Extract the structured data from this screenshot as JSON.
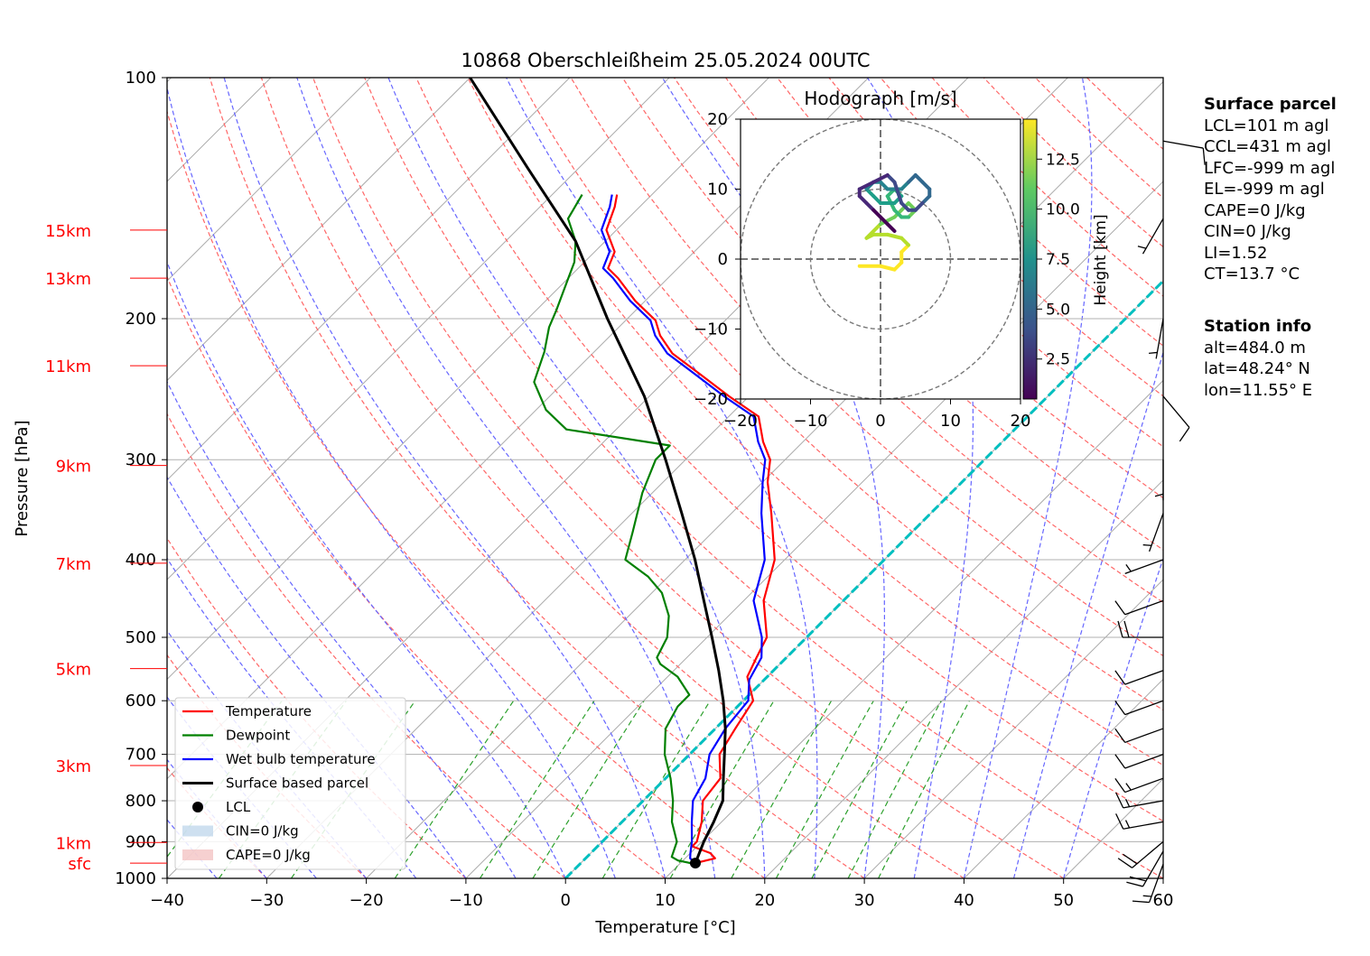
{
  "chart_data": {
    "type": "line",
    "title": "10868 Oberschleißheim 25.05.2024 00UTC",
    "xlabel": "Temperature [°C]",
    "ylabel": "Pressure [hPa]",
    "xlim": [
      -40,
      60
    ],
    "ylim": [
      1000,
      100
    ],
    "y_scale": "log",
    "skew": "skew-T",
    "grid": true,
    "x_ticks": [
      "−40",
      "−30",
      "−20",
      "−10",
      "0",
      "10",
      "20",
      "30",
      "40",
      "50",
      "60"
    ],
    "y_ticks": [
      "100",
      "200",
      "300",
      "400",
      "500",
      "600",
      "700",
      "800",
      "900",
      "1000"
    ],
    "height_labels": [
      {
        "text": "15km",
        "p": 155
      },
      {
        "text": "13km",
        "p": 178
      },
      {
        "text": "11km",
        "p": 229
      },
      {
        "text": "9km",
        "p": 305
      },
      {
        "text": "7km",
        "p": 404
      },
      {
        "text": "5km",
        "p": 547
      },
      {
        "text": "3km",
        "p": 723
      },
      {
        "text": "1km",
        "p": 902
      },
      {
        "text": "sfc",
        "p": 957
      }
    ],
    "series": [
      {
        "name": "Temperature",
        "color": "#ff0000",
        "points": [
          [
            11.5,
            957
          ],
          [
            13,
            944
          ],
          [
            12,
            930
          ],
          [
            9.5,
            912
          ],
          [
            9.5,
            900
          ],
          [
            8,
            850
          ],
          [
            6,
            800
          ],
          [
            5.5,
            750
          ],
          [
            3,
            700
          ],
          [
            2,
            650
          ],
          [
            1,
            600
          ],
          [
            -2,
            560
          ],
          [
            -3,
            530
          ],
          [
            -4,
            500
          ],
          [
            -8,
            450
          ],
          [
            -11,
            400
          ],
          [
            -16,
            350
          ],
          [
            -19.5,
            320
          ],
          [
            -21.5,
            300
          ],
          [
            -24,
            285
          ],
          [
            -27,
            265
          ],
          [
            -32,
            250
          ],
          [
            -37,
            235
          ],
          [
            -42,
            221
          ],
          [
            -45,
            210
          ],
          [
            -47,
            201
          ],
          [
            -51,
            190
          ],
          [
            -55,
            178
          ],
          [
            -57,
            173
          ],
          [
            -58,
            165
          ],
          [
            -61,
            155
          ],
          [
            -62.5,
            145
          ],
          [
            -63.5,
            140
          ]
        ]
      },
      {
        "name": "Dewpoint",
        "color": "#008000",
        "points": [
          [
            11,
            957
          ],
          [
            9.5,
            950
          ],
          [
            8.5,
            940
          ],
          [
            7.5,
            900
          ],
          [
            5,
            850
          ],
          [
            3,
            800
          ],
          [
            0.5,
            750
          ],
          [
            -2.5,
            700
          ],
          [
            -5,
            650
          ],
          [
            -6,
            610
          ],
          [
            -6,
            590
          ],
          [
            -9,
            560
          ],
          [
            -12,
            540
          ],
          [
            -13,
            530
          ],
          [
            -14,
            500
          ],
          [
            -16,
            470
          ],
          [
            -19,
            440
          ],
          [
            -22,
            420
          ],
          [
            -26,
            400
          ],
          [
            -28,
            370
          ],
          [
            -31,
            330
          ],
          [
            -33,
            300
          ],
          [
            -33,
            288
          ],
          [
            -45,
            275
          ],
          [
            -49,
            260
          ],
          [
            -53,
            240
          ],
          [
            -55,
            220
          ],
          [
            -57,
            205
          ],
          [
            -58,
            195
          ],
          [
            -60,
            178
          ],
          [
            -61,
            170
          ],
          [
            -63,
            160
          ],
          [
            -66,
            150
          ],
          [
            -67,
            140
          ]
        ]
      },
      {
        "name": "Wet bulb temperature",
        "color": "#0000ff",
        "points": [
          [
            11.5,
            957
          ],
          [
            10.5,
            944
          ],
          [
            10,
            930
          ],
          [
            9,
            900
          ],
          [
            7,
            850
          ],
          [
            5,
            800
          ],
          [
            4,
            750
          ],
          [
            2,
            700
          ],
          [
            1,
            650
          ],
          [
            0.5,
            600
          ],
          [
            -1.5,
            565
          ],
          [
            -2.5,
            530
          ],
          [
            -4.5,
            500
          ],
          [
            -9,
            450
          ],
          [
            -12,
            400
          ],
          [
            -17,
            350
          ],
          [
            -20,
            320
          ],
          [
            -22,
            300
          ],
          [
            -24.5,
            285
          ],
          [
            -27.5,
            265
          ],
          [
            -32.5,
            250
          ],
          [
            -37.5,
            235
          ],
          [
            -42.5,
            221
          ],
          [
            -45.5,
            210
          ],
          [
            -47.5,
            201
          ],
          [
            -51.5,
            190
          ],
          [
            -55.5,
            178
          ],
          [
            -57.5,
            173
          ],
          [
            -58.5,
            165
          ],
          [
            -61.5,
            155
          ],
          [
            -63,
            145
          ],
          [
            -64,
            140
          ]
        ]
      },
      {
        "name": "Surface based parcel",
        "color": "#000000",
        "points": [
          [
            11.5,
            957
          ],
          [
            10.2,
            900
          ],
          [
            9.2,
            850
          ],
          [
            8.0,
            800
          ],
          [
            5.8,
            750
          ],
          [
            3.5,
            700
          ],
          [
            1.0,
            650
          ],
          [
            -2.0,
            600
          ],
          [
            -5.5,
            550
          ],
          [
            -9.5,
            500
          ],
          [
            -14,
            450
          ],
          [
            -19,
            400
          ],
          [
            -25,
            350
          ],
          [
            -32,
            300
          ],
          [
            -40.5,
            250
          ],
          [
            -52,
            200
          ],
          [
            -63,
            160
          ],
          [
            -75,
            130
          ],
          [
            -90,
            100
          ]
        ]
      }
    ],
    "lcl": {
      "label": "LCL",
      "t": 11.5,
      "p": 957
    },
    "legend": {
      "position": "lower-left",
      "entries": [
        "Temperature",
        "Dewpoint",
        "Wet bulb temperature",
        "Surface based parcel",
        "LCL",
        "CIN=0 J/kg",
        "CAPE=0 J/kg"
      ]
    },
    "hodograph": {
      "title": "Hodograph [m/s]",
      "xlim": [
        -20,
        20
      ],
      "ylim": [
        -20,
        20
      ],
      "ticks": [
        "−20",
        "−10",
        "0",
        "10",
        "20"
      ],
      "colorbar": {
        "label": "Height [km]",
        "ticks": [
          "2.5",
          "5.0",
          "7.5",
          "10.0",
          "12.5"
        ],
        "range": [
          0.5,
          14.5
        ]
      },
      "trace": [
        [
          -3,
          -1
        ],
        [
          0,
          -1
        ],
        [
          2,
          -1.5
        ],
        [
          3,
          -0.5
        ],
        [
          3,
          1
        ],
        [
          4,
          2
        ],
        [
          3,
          3
        ],
        [
          1,
          3.5
        ],
        [
          -1,
          3.5
        ],
        [
          -2,
          3
        ],
        [
          0,
          5
        ],
        [
          2,
          6
        ],
        [
          3,
          7
        ],
        [
          4,
          8
        ],
        [
          5,
          7
        ],
        [
          4,
          6
        ],
        [
          3,
          6
        ],
        [
          2,
          7
        ],
        [
          1,
          9
        ],
        [
          2,
          10
        ],
        [
          3,
          9
        ],
        [
          2,
          8
        ],
        [
          0,
          8
        ],
        [
          -1,
          9
        ],
        [
          -2,
          10
        ],
        [
          -1,
          11
        ],
        [
          0,
          11
        ],
        [
          1,
          10
        ],
        [
          3,
          10
        ],
        [
          4,
          11
        ],
        [
          5,
          12
        ],
        [
          6,
          11
        ],
        [
          7,
          10
        ],
        [
          7,
          9
        ],
        [
          6,
          8
        ],
        [
          5,
          7
        ],
        [
          4,
          7
        ],
        [
          3,
          8
        ],
        [
          2,
          11
        ],
        [
          1,
          12
        ],
        [
          -1,
          11
        ],
        [
          -3,
          10
        ],
        [
          -3,
          9
        ],
        [
          -2,
          8
        ],
        [
          -1,
          7
        ],
        [
          0,
          6
        ],
        [
          1,
          5
        ],
        [
          2,
          4
        ]
      ]
    },
    "wind_barbs": [
      {
        "p": 960,
        "dir": 200,
        "speed": 15
      },
      {
        "p": 925,
        "dir": 210,
        "speed": 20
      },
      {
        "p": 900,
        "dir": 230,
        "speed": 20
      },
      {
        "p": 850,
        "dir": 260,
        "speed": 15
      },
      {
        "p": 800,
        "dir": 260,
        "speed": 15
      },
      {
        "p": 750,
        "dir": 250,
        "speed": 15
      },
      {
        "p": 700,
        "dir": 250,
        "speed": 10
      },
      {
        "p": 650,
        "dir": 250,
        "speed": 10
      },
      {
        "p": 600,
        "dir": 250,
        "speed": 10
      },
      {
        "p": 550,
        "dir": 250,
        "speed": 10
      },
      {
        "p": 500,
        "dir": 270,
        "speed": 20
      },
      {
        "p": 450,
        "dir": 250,
        "speed": 10
      },
      {
        "p": 400,
        "dir": 250,
        "speed": 5
      },
      {
        "p": 350,
        "dir": 200,
        "speed": 5
      },
      {
        "p": 300,
        "dir": 180,
        "speed": 5
      },
      {
        "p": 250,
        "dir": 140,
        "speed": 10
      },
      {
        "p": 200,
        "dir": 190,
        "speed": 5
      },
      {
        "p": 150,
        "dir": 210,
        "speed": 5
      },
      {
        "p": 120,
        "dir": 100,
        "speed": 10
      }
    ]
  },
  "panel": {
    "surface_parcel_title": "Surface parcel",
    "surface_parcel": [
      "LCL=101 m agl",
      "CCL=431 m agl",
      "LFC=-999 m agl",
      "EL=-999 m agl",
      "CAPE=0 J/kg",
      "CIN=0 J/kg",
      "LI=1.52",
      "CT=13.7 °C"
    ],
    "station_title": "Station info",
    "station": [
      "alt=484.0 m",
      "lat=48.24° N",
      "lon=11.55° E"
    ]
  },
  "colors": {
    "temperature": "#ff0000",
    "dewpoint": "#008000",
    "wetbulb": "#0000ff",
    "parcel": "#000000",
    "freezing_line": "#00bfbf",
    "dry_adiabat": "#ff6666",
    "moist_adiabat": "#6666ff",
    "mixing_ratio": "#2ca02c",
    "isotherm": "#aaaaaa",
    "height_label": "#ff0000"
  }
}
